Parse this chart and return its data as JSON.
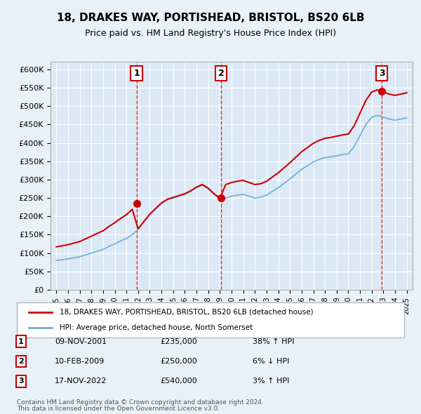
{
  "title": "18, DRAKES WAY, PORTISHEAD, BRISTOL, BS20 6LB",
  "subtitle": "Price paid vs. HM Land Registry's House Price Index (HPI)",
  "ylabel": "",
  "background_color": "#e8f0f8",
  "plot_bg_color": "#dce8f5",
  "grid_color": "#ffffff",
  "sale_dates": [
    "2001-11-09",
    "2009-02-10",
    "2022-11-17"
  ],
  "sale_prices": [
    235000,
    250000,
    540000
  ],
  "sale_labels": [
    "1",
    "2",
    "3"
  ],
  "legend_line1": "18, DRAKES WAY, PORTISHEAD, BRISTOL, BS20 6LB (detached house)",
  "legend_line2": "HPI: Average price, detached house, North Somerset",
  "table": [
    {
      "num": "1",
      "date": "09-NOV-2001",
      "price": "£235,000",
      "hpi": "38% ↑ HPI"
    },
    {
      "num": "2",
      "date": "10-FEB-2009",
      "price": "£250,000",
      "hpi": "6% ↓ HPI"
    },
    {
      "num": "3",
      "date": "17-NOV-2022",
      "price": "£540,000",
      "hpi": "3% ↑ HPI"
    }
  ],
  "footnote1": "Contains HM Land Registry data © Crown copyright and database right 2024.",
  "footnote2": "This data is licensed under the Open Government Licence v3.0.",
  "hpi_color": "#6baed6",
  "price_color": "#cc0000",
  "sale_marker_color": "#cc0000",
  "vline_color": "#cc0000",
  "ylim": [
    0,
    620000
  ],
  "yticks": [
    0,
    50000,
    100000,
    150000,
    200000,
    250000,
    300000,
    350000,
    400000,
    450000,
    500000,
    550000,
    600000
  ]
}
